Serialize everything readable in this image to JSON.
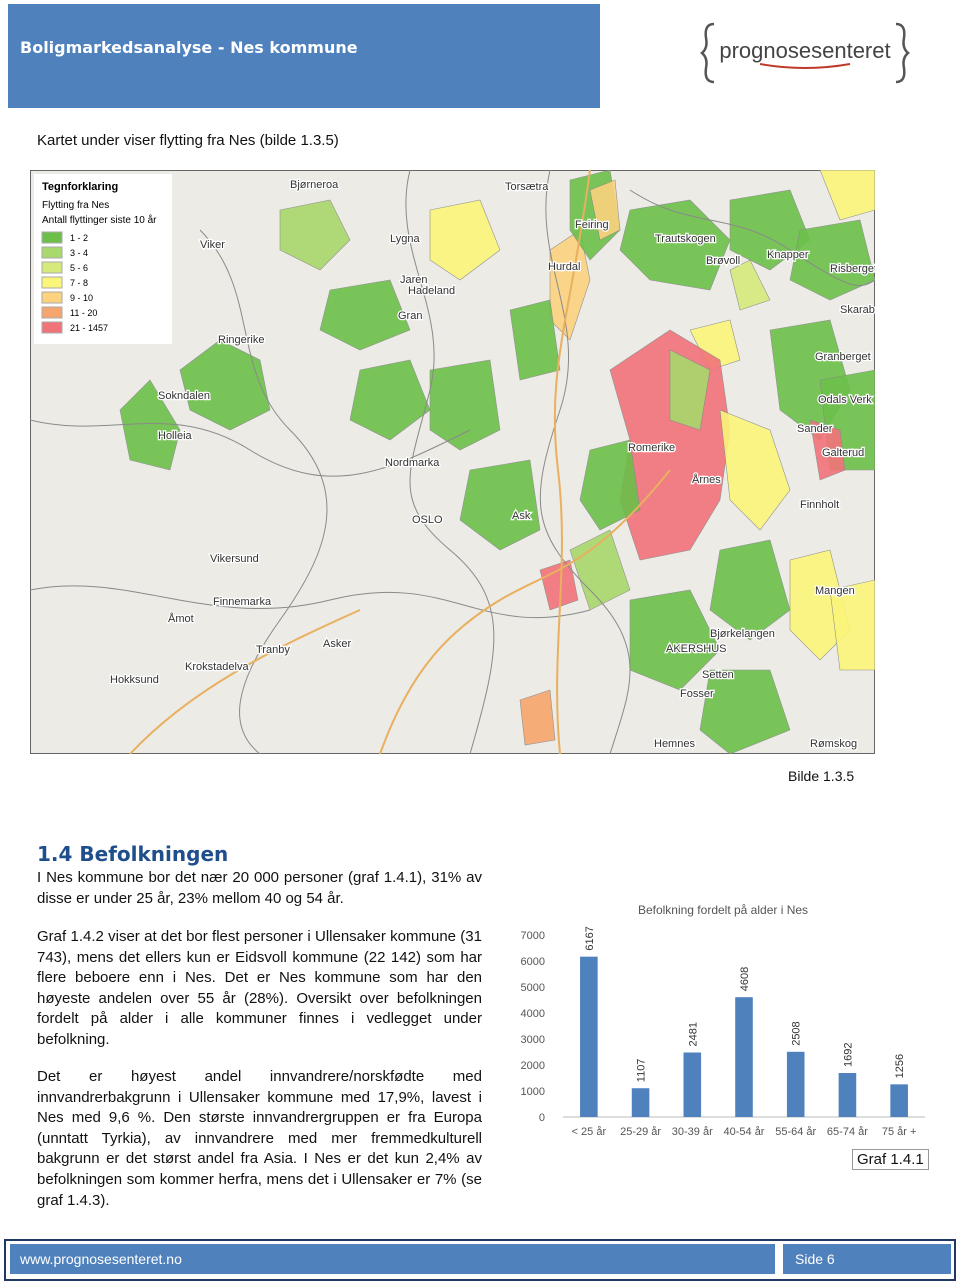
{
  "header": {
    "title": "Boligmarkedsanalyse - Nes kommune",
    "logo": "prognosesenteret"
  },
  "intro": "Kartet under viser flytting fra Nes (bilde 1.3.5)",
  "map": {
    "legend": {
      "title": "Tegnforklaring",
      "subtitle": "Flytting fra Nes",
      "unit": "Antall flyttinger siste 10 år",
      "items": [
        {
          "label": "1 - 2",
          "color": "#6cc04a"
        },
        {
          "label": "3 - 4",
          "color": "#a9d86c"
        },
        {
          "label": "5 - 6",
          "color": "#d6ea7c"
        },
        {
          "label": "7 - 8",
          "color": "#fbf57a"
        },
        {
          "label": "9 - 10",
          "color": "#fcd27e"
        },
        {
          "label": "11 - 20",
          "color": "#f6a66c"
        },
        {
          "label": "21 - 1457",
          "color": "#f1737a"
        }
      ]
    },
    "labels": [
      "Bjørneroa",
      "Torsætra",
      "Lygna",
      "Viker",
      "Jaren",
      "Hadeland",
      "Gran",
      "Ringerike",
      "Feiring",
      "Hurdal",
      "Trautskogen",
      "Brøvoll",
      "Knapper",
      "Risberget",
      "Skarabarget",
      "Granberget",
      "Odals Verk",
      "Sokndalen",
      "Holleia",
      "Sander",
      "Galterud",
      "Romerike",
      "Årnes",
      "Nordmarka",
      "OSLO",
      "Finnholt",
      "Ask",
      "Vikersund",
      "Finnemarka",
      "Mangen",
      "Åmot",
      "Bjørkelangen",
      "AKERSHUS",
      "Asker",
      "Tranby",
      "Krokstadelva",
      "Hokksund",
      "Setten",
      "Fosser",
      "Hemnes",
      "Rømskog"
    ],
    "caption": "Bilde 1.3.5"
  },
  "section": {
    "heading": "1.4 Befolkningen",
    "paragraphs": [
      "I Nes kommune bor det nær 20 000 personer (graf 1.4.1), 31% av disse er under 25 år, 23% mellom 40 og 54 år.",
      "Graf 1.4.2 viser at det bor flest personer i Ullensaker kommune (31 743), mens det ellers kun er Eidsvoll kommune (22 142) som har flere beboere enn i Nes. Det er Nes kommune som har den høyeste andelen over 55 år (28%). Oversikt over befolkningen fordelt på alder i alle kommuner finnes i vedlegget under befolkning.",
      "Det er høyest andel innvandrere/norskfødte med innvandrerbakgrunn i Ullensaker kommune med 17,9%, lavest i Nes med 9,6 %. Den største innvandrergruppen er fra Europa (unntatt Tyrkia), av innvandrere med mer fremmedkulturell bakgrunn er det størst andel fra Asia. I Nes er det kun 2,4% av befolkningen som kommer herfra, mens det i Ullensaker er 7% (se graf 1.4.3)."
    ]
  },
  "chart_data": {
    "type": "bar",
    "title": "Befolkning fordelt på alder i Nes",
    "categories": [
      "< 25 år",
      "25-29 år",
      "30-39 år",
      "40-54 år",
      "55-64 år",
      "65-74 år",
      "75 år +"
    ],
    "values": [
      6167,
      1107,
      2481,
      4608,
      2508,
      1692,
      1256
    ],
    "color": "#4f81bd",
    "ylim": [
      0,
      7000
    ],
    "yticks": [
      0,
      1000,
      2000,
      3000,
      4000,
      5000,
      6000,
      7000
    ],
    "grid": false
  },
  "chart_caption": "Graf 1.4.1",
  "footer": {
    "url": "www.prognosesenteret.no",
    "page": "Side 6"
  }
}
